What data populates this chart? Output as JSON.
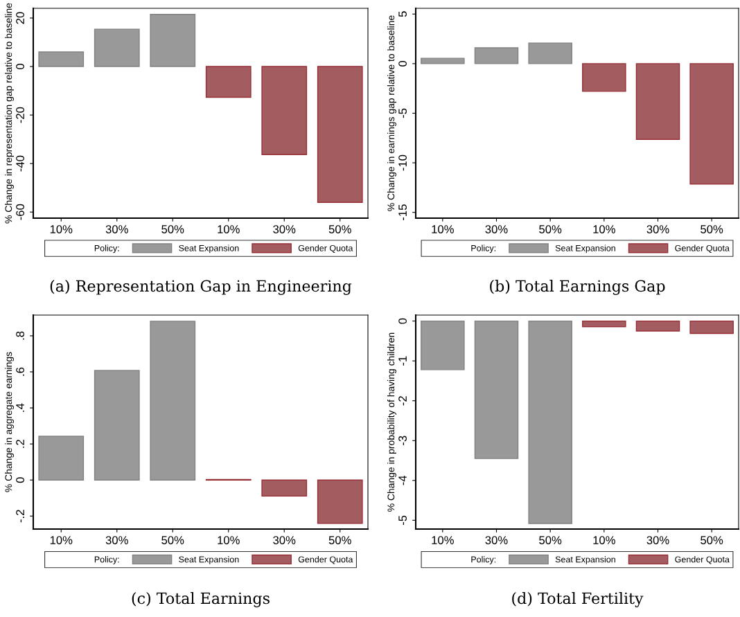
{
  "chart_data": [
    {
      "type": "bar",
      "title": "(a) Representation Gap in Engineering",
      "ylabel": "% Change in representation gap relative to baseline",
      "legend_title": "Policy:",
      "legend": "bottom",
      "categories": [
        "10%",
        "30%",
        "50%",
        "10%",
        "30%",
        "50%"
      ],
      "series": [
        {
          "name": "Seat Expansion",
          "color": "#999999",
          "values": [
            6.0,
            15.4,
            21.5,
            null,
            null,
            null
          ]
        },
        {
          "name": "Gender Quota",
          "color": "#a35c60",
          "values": [
            null,
            null,
            null,
            -12.7,
            -36.3,
            -56.0
          ]
        }
      ],
      "ylim": [
        -62.5,
        24
      ],
      "yticks": [
        20,
        0,
        -20,
        -40,
        -60
      ]
    },
    {
      "type": "bar",
      "title": "(b) Total Earnings Gap",
      "ylabel": "% Change in earnings gap relative to baseline",
      "legend_title": "Policy:",
      "legend": "bottom",
      "categories": [
        "10%",
        "30%",
        "50%",
        "10%",
        "30%",
        "50%"
      ],
      "series": [
        {
          "name": "Seat Expansion",
          "color": "#999999",
          "values": [
            0.54,
            1.6,
            2.08,
            null,
            null,
            null
          ]
        },
        {
          "name": "Gender Quota",
          "color": "#a35c60",
          "values": [
            null,
            null,
            null,
            -2.79,
            -7.64,
            -12.15
          ]
        }
      ],
      "ylim": [
        -15.58,
        5.58
      ],
      "yticks": [
        5,
        0,
        -5,
        -10,
        -15
      ]
    },
    {
      "type": "bar",
      "title": "(c) Total Earnings",
      "ylabel": "% Change in aggregate earnings",
      "legend_title": "Policy:",
      "legend": "bottom",
      "categories": [
        "10%",
        "30%",
        "50%",
        "10%",
        "30%",
        "50%"
      ],
      "series": [
        {
          "name": "Seat Expansion",
          "color": "#999999",
          "values": [
            0.243,
            0.608,
            0.881,
            null,
            null,
            null
          ]
        },
        {
          "name": "Gender Quota",
          "color": "#a35c60",
          "values": [
            null,
            null,
            null,
            0.003,
            -0.089,
            -0.241
          ]
        }
      ],
      "ylim": [
        -0.272,
        0.915
      ],
      "yticks": [
        {
          "value": 0.8,
          "label": ".8"
        },
        {
          "value": 0.6,
          "label": ".6"
        },
        {
          "value": 0.4,
          "label": ".4"
        },
        {
          "value": 0.2,
          "label": ".2"
        },
        0,
        {
          "value": -0.2,
          "label": "-.2"
        }
      ]
    },
    {
      "type": "bar",
      "title": "(d) Total Fertility",
      "ylabel": "% Change in probability of having children",
      "legend_title": "Policy:",
      "legend": "bottom",
      "categories": [
        "10%",
        "30%",
        "50%",
        "10%",
        "30%",
        "50%"
      ],
      "series": [
        {
          "name": "Seat Expansion",
          "color": "#999999",
          "values": [
            -1.22,
            -3.45,
            -5.08,
            null,
            null,
            null
          ]
        },
        {
          "name": "Gender Quota",
          "color": "#a35c60",
          "values": [
            null,
            null,
            null,
            -0.14,
            -0.25,
            -0.31
          ]
        }
      ],
      "ylim": [
        -5.22,
        0.15
      ],
      "yticks": [
        0,
        -1,
        -2,
        -3,
        -4,
        -5
      ]
    }
  ]
}
